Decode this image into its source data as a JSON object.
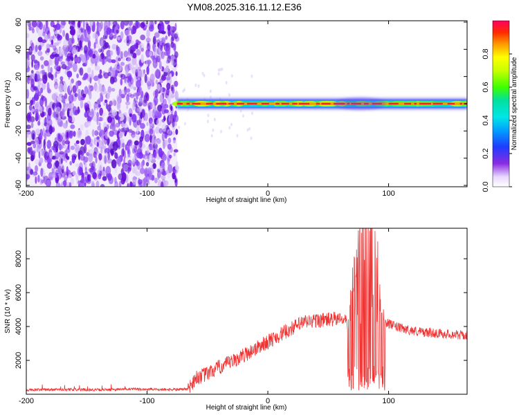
{
  "title": "YM08.2025.316.11.12.E36",
  "chart_data": [
    {
      "type": "heatmap",
      "title": "",
      "xlabel": "Height of straight line (km)",
      "ylabel": "Frequency (Hz)",
      "xlim": [
        -200,
        165
      ],
      "ylim": [
        -61,
        61
      ],
      "xticks": [
        -200,
        -100,
        0,
        100
      ],
      "yticks": [
        -60,
        -40,
        -20,
        0,
        20,
        40,
        60
      ],
      "noise_region": {
        "x": [
          -200,
          -75
        ],
        "y": [
          -61,
          61
        ],
        "color": "purple speckle"
      },
      "signal_band": {
        "x": [
          -75,
          165
        ],
        "center_freq": 0,
        "half_width_hz": 2
      },
      "colorbar": {
        "label": "Normalized spectral amplitude",
        "range": [
          0.0,
          1.0
        ],
        "ticks": [
          "0.0",
          "0.2",
          "0.4",
          "0.6",
          "0.8"
        ]
      }
    },
    {
      "type": "line",
      "title": "",
      "xlabel": "Height of straight line (km)",
      "ylabel": "SNR (10 * v/v)",
      "xlim": [
        -200,
        165
      ],
      "ylim": [
        0,
        9800
      ],
      "xticks": [
        -200,
        -100,
        0,
        100
      ],
      "yticks": [
        2000,
        4000,
        6000,
        8000
      ],
      "series": [
        {
          "name": "SNR",
          "color": "#ee3333",
          "x": [
            -200,
            -170,
            -140,
            -110,
            -80,
            -66,
            -60,
            -50,
            -40,
            -30,
            -20,
            -10,
            0,
            10,
            20,
            30,
            40,
            50,
            60,
            65,
            66,
            70,
            75,
            80,
            85,
            90,
            95,
            97,
            100,
            110,
            120,
            130,
            140,
            150,
            160,
            165
          ],
          "values": [
            250,
            280,
            260,
            300,
            280,
            300,
            950,
            1200,
            1600,
            1900,
            2300,
            2700,
            3100,
            3500,
            3900,
            4250,
            4350,
            4400,
            4450,
            4450,
            3800,
            4700,
            5000,
            5200,
            5000,
            4800,
            4500,
            4300,
            4150,
            3900,
            3750,
            3650,
            3600,
            3550,
            3500,
            3450
          ],
          "burst": {
            "x": [
              66,
              97
            ],
            "min": 200,
            "max": 9800
          }
        }
      ]
    }
  ]
}
